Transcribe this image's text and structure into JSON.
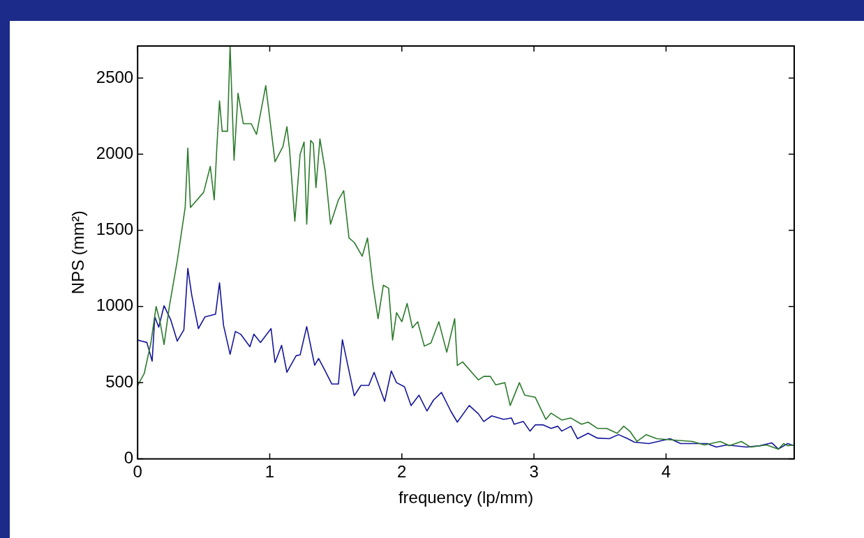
{
  "chart_data": {
    "type": "line",
    "xlabel": "frequency (lp/mm)",
    "ylabel": "NPS (mm²)",
    "xlim": [
      0,
      4.97
    ],
    "ylim": [
      0,
      2710
    ],
    "xticks": [
      0,
      1,
      2,
      3,
      4
    ],
    "yticks": [
      0,
      500,
      1000,
      1500,
      2000,
      2500
    ],
    "grid": false,
    "legend": false,
    "marker": "none",
    "line_style": "solid",
    "series": [
      {
        "color": "#2b7a2b",
        "x": [
          0,
          0.05,
          0.1,
          0.14,
          0.17,
          0.2,
          0.24,
          0.3,
          0.36,
          0.38,
          0.4,
          0.5,
          0.55,
          0.58,
          0.6,
          0.62,
          0.64,
          0.68,
          0.7,
          0.73,
          0.76,
          0.8,
          0.86,
          0.9,
          0.97,
          1.04,
          1.1,
          1.13,
          1.15,
          1.19,
          1.23,
          1.26,
          1.28,
          1.31,
          1.33,
          1.35,
          1.38,
          1.42,
          1.46,
          1.52,
          1.56,
          1.6,
          1.64,
          1.7,
          1.74,
          1.78,
          1.82,
          1.86,
          1.9,
          1.93,
          1.96,
          2,
          2.04,
          2.08,
          2.12,
          2.17,
          2.22,
          2.28,
          2.34,
          2.4,
          2.42,
          2.46,
          2.58,
          2.62,
          2.67,
          2.71,
          2.78,
          2.82,
          2.89,
          2.93,
          3.01,
          3.09,
          3.13,
          3.21,
          3.28,
          3.36,
          3.41,
          3.48,
          3.55,
          3.63,
          3.68,
          3.73,
          3.78,
          3.85,
          3.93,
          4.06,
          4.2,
          4.29,
          4.41,
          4.48,
          4.57,
          4.64,
          4.76,
          4.85,
          4.89,
          4.92,
          4.97
        ],
        "values": [
          480,
          560,
          760,
          1000,
          900,
          750,
          1000,
          1300,
          1650,
          2040,
          1650,
          1750,
          1920,
          1700,
          2050,
          2350,
          2150,
          2150,
          2710,
          1960,
          2400,
          2200,
          2200,
          2130,
          2450,
          1950,
          2050,
          2180,
          2030,
          1560,
          2000,
          2080,
          1540,
          2090,
          2070,
          1780,
          2100,
          1890,
          1540,
          1700,
          1760,
          1450,
          1420,
          1330,
          1450,
          1150,
          920,
          1140,
          1120,
          780,
          960,
          900,
          1020,
          860,
          900,
          740,
          760,
          900,
          700,
          920,
          613,
          636,
          518,
          541,
          541,
          486,
          500,
          350,
          500,
          418,
          404,
          259,
          300,
          255,
          268,
          227,
          241,
          200,
          200,
          168,
          214,
          177,
          114,
          159,
          132,
          123,
          114,
          91,
          114,
          86,
          114,
          77,
          91,
          64,
          100,
          86,
          91
        ]
      },
      {
        "color": "#14149a",
        "x": [
          0,
          0.03,
          0.07,
          0.11,
          0.13,
          0.16,
          0.2,
          0.25,
          0.3,
          0.35,
          0.38,
          0.41,
          0.46,
          0.51,
          0.59,
          0.62,
          0.65,
          0.7,
          0.74,
          0.78,
          0.85,
          0.88,
          0.93,
          1.01,
          1.04,
          1.09,
          1.13,
          1.2,
          1.23,
          1.28,
          1.34,
          1.37,
          1.42,
          1.47,
          1.52,
          1.55,
          1.64,
          1.69,
          1.75,
          1.79,
          1.87,
          1.92,
          1.96,
          2.02,
          2.07,
          2.13,
          2.19,
          2.24,
          2.3,
          2.37,
          2.42,
          2.51,
          2.58,
          2.62,
          2.68,
          2.77,
          2.83,
          2.85,
          2.92,
          2.97,
          3.01,
          3.07,
          3.13,
          3.18,
          3.21,
          3.28,
          3.33,
          3.41,
          3.48,
          3.57,
          3.64,
          3.71,
          3.76,
          3.87,
          4.03,
          4.11,
          4.2,
          4.31,
          4.38,
          4.46,
          4.61,
          4.71,
          4.8,
          4.85,
          4.92,
          4.97
        ],
        "values": [
          780,
          773,
          764,
          641,
          932,
          864,
          1005,
          914,
          773,
          846,
          1250,
          1073,
          855,
          932,
          950,
          1155,
          877,
          686,
          836,
          818,
          736,
          818,
          764,
          855,
          632,
          745,
          568,
          677,
          682,
          868,
          614,
          659,
          577,
          491,
          491,
          782,
          414,
          482,
          482,
          568,
          377,
          577,
          500,
          473,
          350,
          418,
          314,
          386,
          436,
          314,
          241,
          350,
          295,
          245,
          282,
          259,
          268,
          227,
          245,
          182,
          223,
          223,
          200,
          214,
          182,
          214,
          132,
          168,
          136,
          132,
          159,
          132,
          109,
          100,
          132,
          100,
          100,
          100,
          77,
          91,
          77,
          86,
          105,
          64,
          100,
          86
        ]
      }
    ]
  }
}
